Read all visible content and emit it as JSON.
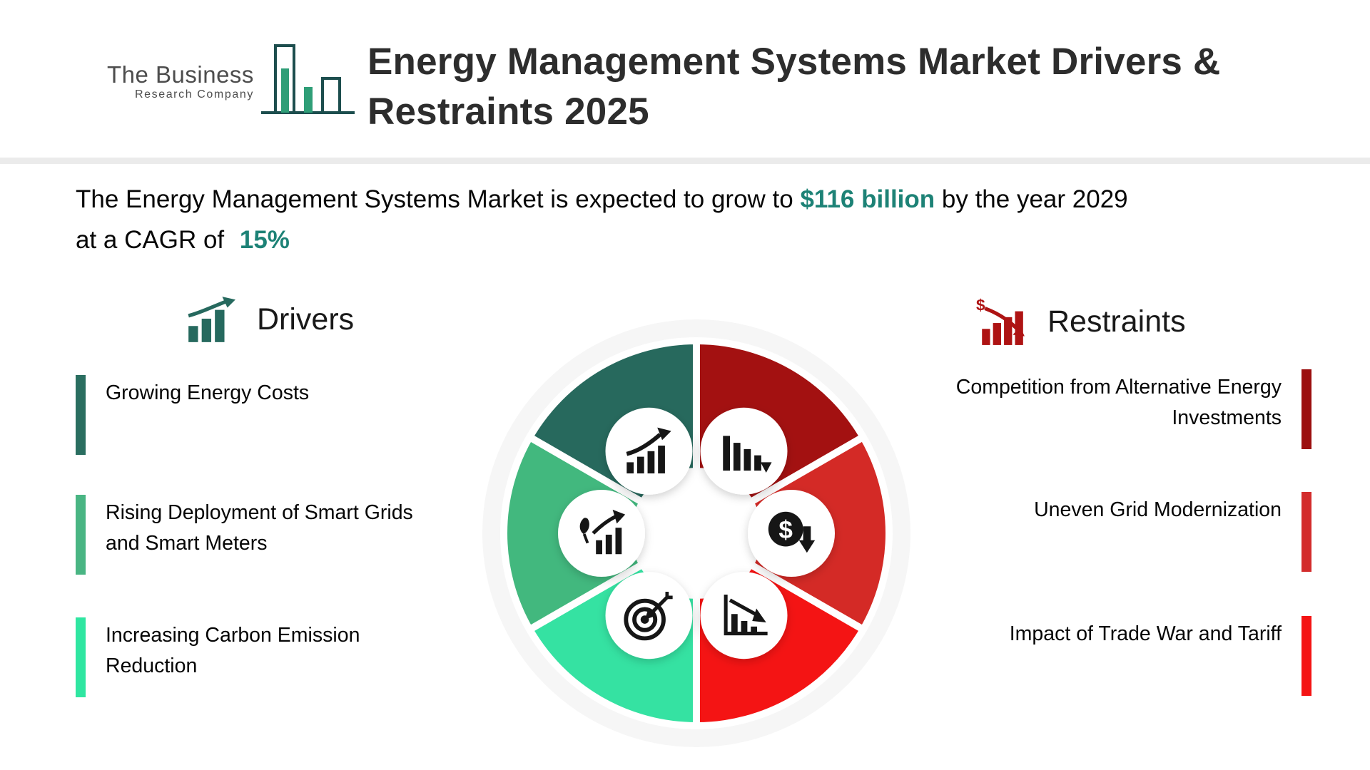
{
  "header": {
    "title_line1": "Energy Management Systems Market Drivers &",
    "title_line2": "Restraints 2025"
  },
  "logo": {
    "line1": "The Business",
    "line2": "Research Company"
  },
  "intro": {
    "part1": "The Energy Management Systems Market is expected to grow to ",
    "value": "$116 billion",
    "part2": " by the year 2029",
    "part3": "at a CAGR of ",
    "cagr": "15%"
  },
  "drivers": {
    "heading": "Drivers",
    "accent": "#26695e",
    "items": [
      {
        "label": "Growing Energy Costs",
        "color": "#2a6e60"
      },
      {
        "label": "Rising Deployment of Smart Grids and Smart Meters",
        "color": "#49b583"
      },
      {
        "label": "Increasing Carbon Emission Reduction",
        "color": "#2fe6a1"
      }
    ]
  },
  "restraints": {
    "heading": "Restraints",
    "accent": "#ae1313",
    "items": [
      {
        "label": "Competition from Alternative Energy Investments",
        "color": "#9c0f0f"
      },
      {
        "label": "Uneven Grid Modernization",
        "color": "#d32c2c"
      },
      {
        "label": "Impact of Trade War and Tariff",
        "color": "#f41414"
      }
    ]
  },
  "wheel": {
    "segments": [
      {
        "name": "declining-bars",
        "icon": "icon-declining-bars",
        "color": "#a31111"
      },
      {
        "name": "money-decline",
        "icon": "icon-money-decline",
        "color": "#d42a26"
      },
      {
        "name": "decline-chart",
        "icon": "icon-decline-chart",
        "color": "#f41414"
      },
      {
        "name": "target",
        "icon": "icon-target",
        "color": "#35e2a2"
      },
      {
        "name": "eco-growth",
        "icon": "icon-eco-growth",
        "color": "#42b87e"
      },
      {
        "name": "growth-trend",
        "icon": "icon-growth-trend",
        "color": "#27695d"
      }
    ]
  }
}
